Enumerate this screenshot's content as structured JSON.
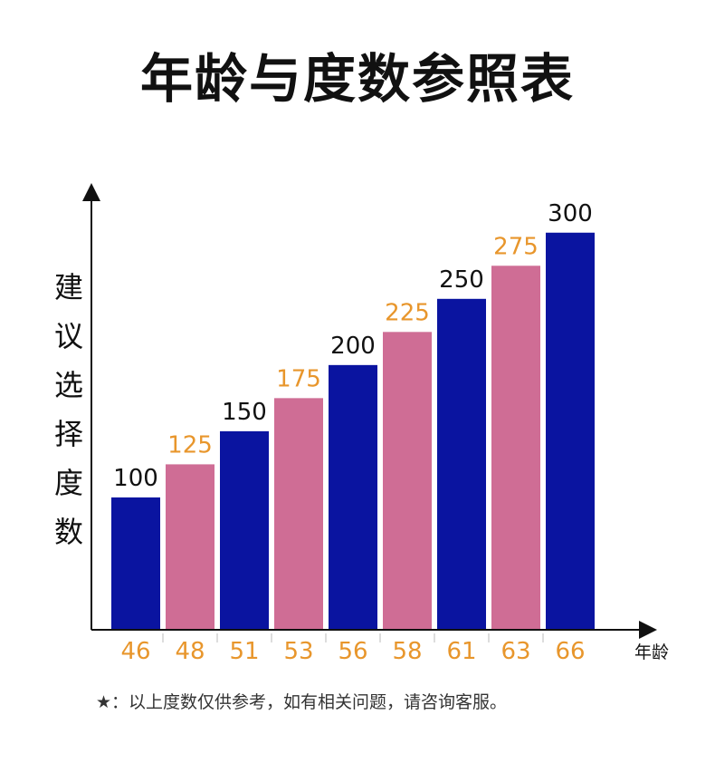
{
  "title": "年龄与度数参照表",
  "y_axis_label": "建议选择度数",
  "x_axis_label": "年龄",
  "footnote": "★：以上度数仅供参考，如有相关问题，请咨询客服。",
  "colors": {
    "blue": "#0a14a0",
    "pink": "#cf6d95",
    "orange_label": "#e8962c",
    "black_label": "#111111"
  },
  "chart_data": {
    "type": "bar",
    "title": "年龄与度数参照表",
    "xlabel": "年龄",
    "ylabel": "建议选择度数",
    "categories": [
      "46",
      "48",
      "51",
      "53",
      "56",
      "58",
      "61",
      "63",
      "66"
    ],
    "values": [
      100,
      125,
      150,
      175,
      200,
      225,
      250,
      275,
      300
    ],
    "bar_colors": [
      "blue",
      "pink",
      "blue",
      "pink",
      "blue",
      "pink",
      "blue",
      "pink",
      "blue"
    ],
    "ylim": [
      0,
      350
    ],
    "grid": false,
    "legend": "none"
  }
}
